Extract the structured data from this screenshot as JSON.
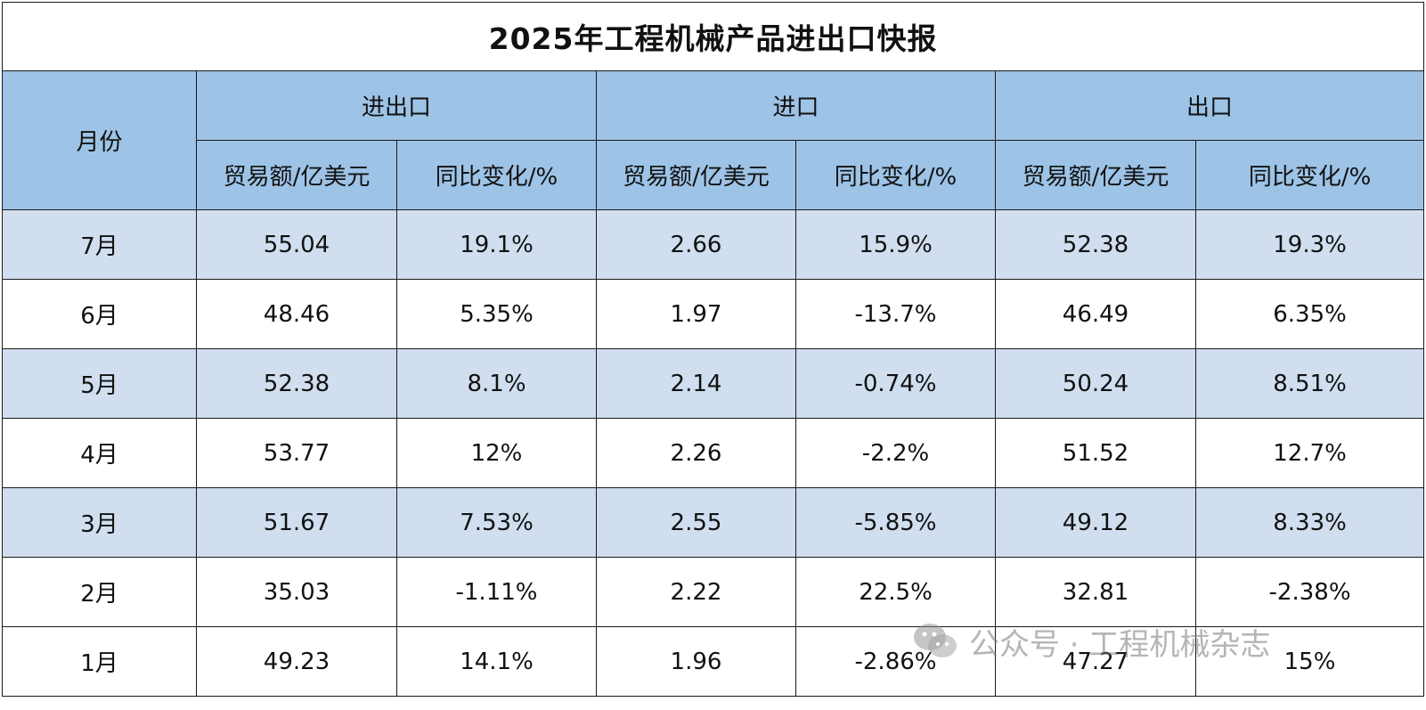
{
  "title": "2025年工程机械产品进出口快报",
  "header": {
    "month": "月份",
    "groups": [
      "进出口",
      "进口",
      "出口"
    ],
    "sub": [
      "贸易额/亿美元",
      "同比变化/%"
    ]
  },
  "rows": [
    {
      "month": "7月",
      "total": "55.04",
      "total_yoy": "19.1%",
      "import": "2.66",
      "import_yoy": "15.9%",
      "export": "52.38",
      "export_yoy": "19.3%"
    },
    {
      "month": "6月",
      "total": "48.46",
      "total_yoy": "5.35%",
      "import": "1.97",
      "import_yoy": "-13.7%",
      "export": "46.49",
      "export_yoy": "6.35%"
    },
    {
      "month": "5月",
      "total": "52.38",
      "total_yoy": "8.1%",
      "import": "2.14",
      "import_yoy": "-0.74%",
      "export": "50.24",
      "export_yoy": "8.51%"
    },
    {
      "month": "4月",
      "total": "53.77",
      "total_yoy": "12%",
      "import": "2.26",
      "import_yoy": "-2.2%",
      "export": "51.52",
      "export_yoy": "12.7%"
    },
    {
      "month": "3月",
      "total": "51.67",
      "total_yoy": "7.53%",
      "import": "2.55",
      "import_yoy": "-5.85%",
      "export": "49.12",
      "export_yoy": "8.33%"
    },
    {
      "month": "2月",
      "total": "35.03",
      "total_yoy": "-1.11%",
      "import": "2.22",
      "import_yoy": "22.5%",
      "export": "32.81",
      "export_yoy": "-2.38%"
    },
    {
      "month": "1月",
      "total": "49.23",
      "total_yoy": "14.1%",
      "import": "1.96",
      "import_yoy": "-2.86%",
      "export": "47.27",
      "export_yoy": "15%"
    }
  ],
  "watermark": {
    "text": "公众号 · 工程机械杂志",
    "icon": "wechat-icon"
  },
  "colors": {
    "header_bg": "#9dc3e6",
    "shaded_row_bg": "#d0deef",
    "border": "#1a1a1a"
  }
}
